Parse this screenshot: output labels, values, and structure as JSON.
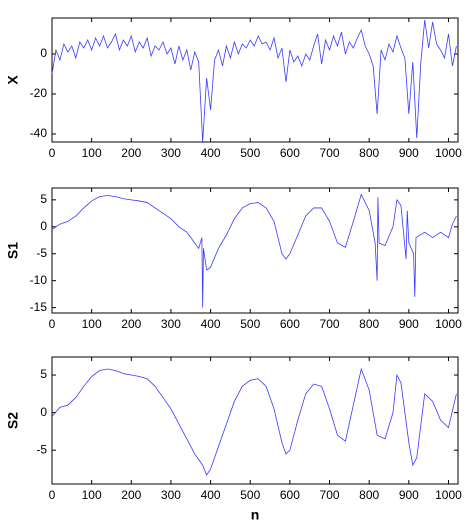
{
  "chart_data": [
    {
      "type": "line",
      "y_label": "X",
      "color": "#3a3aff",
      "xlim": [
        0,
        1024
      ],
      "ylim": [
        -44,
        18
      ],
      "xticks": [
        0,
        100,
        200,
        300,
        400,
        500,
        600,
        700,
        800,
        900,
        1000
      ],
      "yticks": [
        0,
        -20,
        -40
      ],
      "x": [
        0,
        10,
        20,
        30,
        40,
        50,
        60,
        70,
        80,
        90,
        100,
        110,
        120,
        130,
        140,
        150,
        160,
        170,
        180,
        190,
        200,
        210,
        220,
        230,
        240,
        250,
        260,
        270,
        280,
        290,
        300,
        310,
        320,
        330,
        340,
        350,
        360,
        370,
        380,
        390,
        400,
        410,
        420,
        430,
        440,
        450,
        460,
        470,
        480,
        490,
        500,
        510,
        520,
        530,
        540,
        550,
        560,
        570,
        580,
        590,
        600,
        610,
        620,
        630,
        640,
        650,
        660,
        670,
        680,
        690,
        700,
        710,
        720,
        730,
        740,
        750,
        760,
        770,
        780,
        790,
        800,
        810,
        820,
        830,
        840,
        850,
        860,
        870,
        880,
        890,
        900,
        910,
        920,
        930,
        940,
        950,
        960,
        970,
        980,
        990,
        1000,
        1010,
        1020
      ],
      "values": [
        -10,
        2,
        -3,
        5,
        1,
        4,
        -2,
        6,
        3,
        7,
        2,
        8,
        4,
        9,
        3,
        6,
        10,
        2,
        7,
        4,
        9,
        1,
        6,
        3,
        8,
        -1,
        4,
        2,
        6,
        0,
        3,
        -5,
        4,
        -3,
        2,
        -8,
        1,
        -4,
        -44,
        -12,
        -28,
        -3,
        2,
        -6,
        4,
        -2,
        6,
        0,
        5,
        3,
        7,
        4,
        9,
        5,
        6,
        2,
        8,
        -2,
        3,
        -14,
        2,
        -4,
        -1,
        -6,
        0,
        -3,
        4,
        10,
        -5,
        7,
        2,
        9,
        4,
        11,
        0,
        6,
        3,
        8,
        12,
        4,
        0,
        -6,
        -30,
        2,
        -3,
        5,
        1,
        9,
        3,
        -2,
        -30,
        -4,
        -42,
        -5,
        17,
        3,
        16,
        5,
        2,
        -2,
        10,
        -6,
        4
      ]
    },
    {
      "type": "line",
      "y_label": "S1",
      "color": "#3a3aff",
      "xlim": [
        0,
        1024
      ],
      "ylim": [
        -16,
        7.2
      ],
      "xticks": [
        0,
        100,
        200,
        300,
        400,
        500,
        600,
        700,
        800,
        900,
        1000
      ],
      "yticks": [
        5,
        0,
        -5,
        -10,
        -15
      ],
      "x": [
        0,
        20,
        40,
        60,
        80,
        100,
        120,
        140,
        160,
        180,
        200,
        220,
        240,
        260,
        280,
        300,
        320,
        340,
        360,
        370,
        378,
        380,
        382,
        390,
        400,
        420,
        440,
        460,
        480,
        500,
        520,
        540,
        560,
        580,
        590,
        600,
        620,
        640,
        660,
        680,
        700,
        720,
        740,
        760,
        780,
        800,
        815,
        820,
        822,
        825,
        840,
        860,
        870,
        880,
        893,
        896,
        900,
        912,
        915,
        918,
        940,
        960,
        980,
        1000,
        1010,
        1020
      ],
      "values": [
        -0.5,
        0.5,
        1,
        2,
        3.5,
        4.8,
        5.6,
        5.8,
        5.6,
        5.2,
        5,
        4.8,
        4.5,
        3.5,
        2.5,
        1.5,
        0,
        -1,
        -3,
        -4,
        -2,
        -15,
        -4,
        -8,
        -7.5,
        -4,
        -1.5,
        1.5,
        3.5,
        4.3,
        4.5,
        3.5,
        1,
        -5,
        -6,
        -5,
        -1.5,
        2,
        3.5,
        3.5,
        1,
        -3,
        -3.8,
        1,
        6,
        3,
        -3,
        -10,
        5.5,
        -3,
        -3.5,
        0,
        5,
        4,
        -6,
        3,
        -3,
        -5,
        -13,
        -2,
        -1,
        -2,
        -1,
        -2,
        0.5,
        2
      ]
    },
    {
      "type": "line",
      "y_label": "S2",
      "x_label": "n",
      "color": "#3a3aff",
      "xlim": [
        0,
        1024
      ],
      "ylim": [
        -9.5,
        7.4
      ],
      "xticks": [
        0,
        100,
        200,
        300,
        400,
        500,
        600,
        700,
        800,
        900,
        1000
      ],
      "yticks": [
        5,
        0,
        -5
      ],
      "x": [
        0,
        20,
        40,
        60,
        80,
        100,
        120,
        140,
        160,
        180,
        200,
        220,
        240,
        260,
        280,
        300,
        320,
        340,
        360,
        380,
        390,
        400,
        420,
        440,
        460,
        480,
        500,
        520,
        540,
        560,
        580,
        590,
        600,
        620,
        640,
        660,
        680,
        700,
        720,
        740,
        760,
        780,
        800,
        820,
        840,
        860,
        870,
        880,
        900,
        910,
        920,
        940,
        960,
        980,
        1000,
        1020
      ],
      "values": [
        -0.5,
        0.7,
        1,
        2,
        3.5,
        4.8,
        5.6,
        5.8,
        5.6,
        5.2,
        5,
        4.8,
        4.5,
        3.5,
        2,
        0.5,
        -1.5,
        -3.5,
        -5.5,
        -7,
        -8.3,
        -7.5,
        -4.5,
        -1.5,
        1.5,
        3.5,
        4.3,
        4.5,
        3.5,
        0.5,
        -4,
        -5.5,
        -5,
        -1,
        2.5,
        3.8,
        3.5,
        0.5,
        -3,
        -3.8,
        1,
        5.8,
        3,
        -3,
        -3.5,
        0,
        5,
        4,
        -4,
        -7,
        -6,
        2.5,
        1.5,
        -1,
        -2,
        2.5
      ]
    }
  ]
}
